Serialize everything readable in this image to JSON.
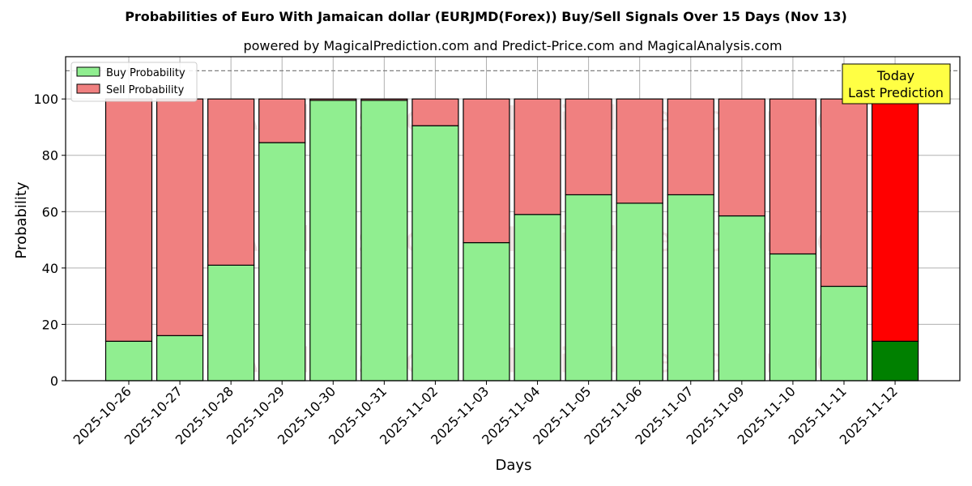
{
  "chart_data": {
    "type": "bar",
    "stacked": true,
    "title": "Probabilities of Euro With Jamaican dollar (EURJMD(Forex)) Buy/Sell Signals Over 15 Days (Nov 13)",
    "subtitle": "powered by MagicalPrediction.com and Predict-Price.com and MagicalAnalysis.com",
    "xlabel": "Days",
    "ylabel": "Probability",
    "ylim": [
      0,
      115
    ],
    "yticks": [
      0,
      20,
      40,
      60,
      80,
      100
    ],
    "grid": true,
    "legend_position": "top-left",
    "reference_line": 110,
    "categories": [
      "2025-10-26",
      "2025-10-27",
      "2025-10-28",
      "2025-10-29",
      "2025-10-30",
      "2025-10-31",
      "2025-11-02",
      "2025-11-03",
      "2025-11-04",
      "2025-11-05",
      "2025-11-06",
      "2025-11-07",
      "2025-11-09",
      "2025-11-10",
      "2025-11-11",
      "2025-11-12"
    ],
    "series": [
      {
        "name": "Buy Probability",
        "color": "#90ee90",
        "highlight_color": "#008000",
        "values": [
          14,
          16,
          41,
          84.5,
          99.5,
          99.5,
          90.5,
          49,
          59,
          66,
          63,
          66,
          58.5,
          45,
          33.5,
          14
        ]
      },
      {
        "name": "Sell Probability",
        "color": "#f08080",
        "highlight_color": "#ff0000",
        "values": [
          86,
          84,
          59,
          15.5,
          0.5,
          0.5,
          9.5,
          51,
          41,
          34,
          37,
          34,
          41.5,
          55,
          66.5,
          86
        ]
      }
    ],
    "highlight_index": 15,
    "annotation": {
      "line1": "Today",
      "line2": "Last Prediction",
      "color": "#ffff44"
    },
    "watermarks": [
      "MagicalAnalysis.com",
      "MagicalPrediction.com"
    ]
  }
}
